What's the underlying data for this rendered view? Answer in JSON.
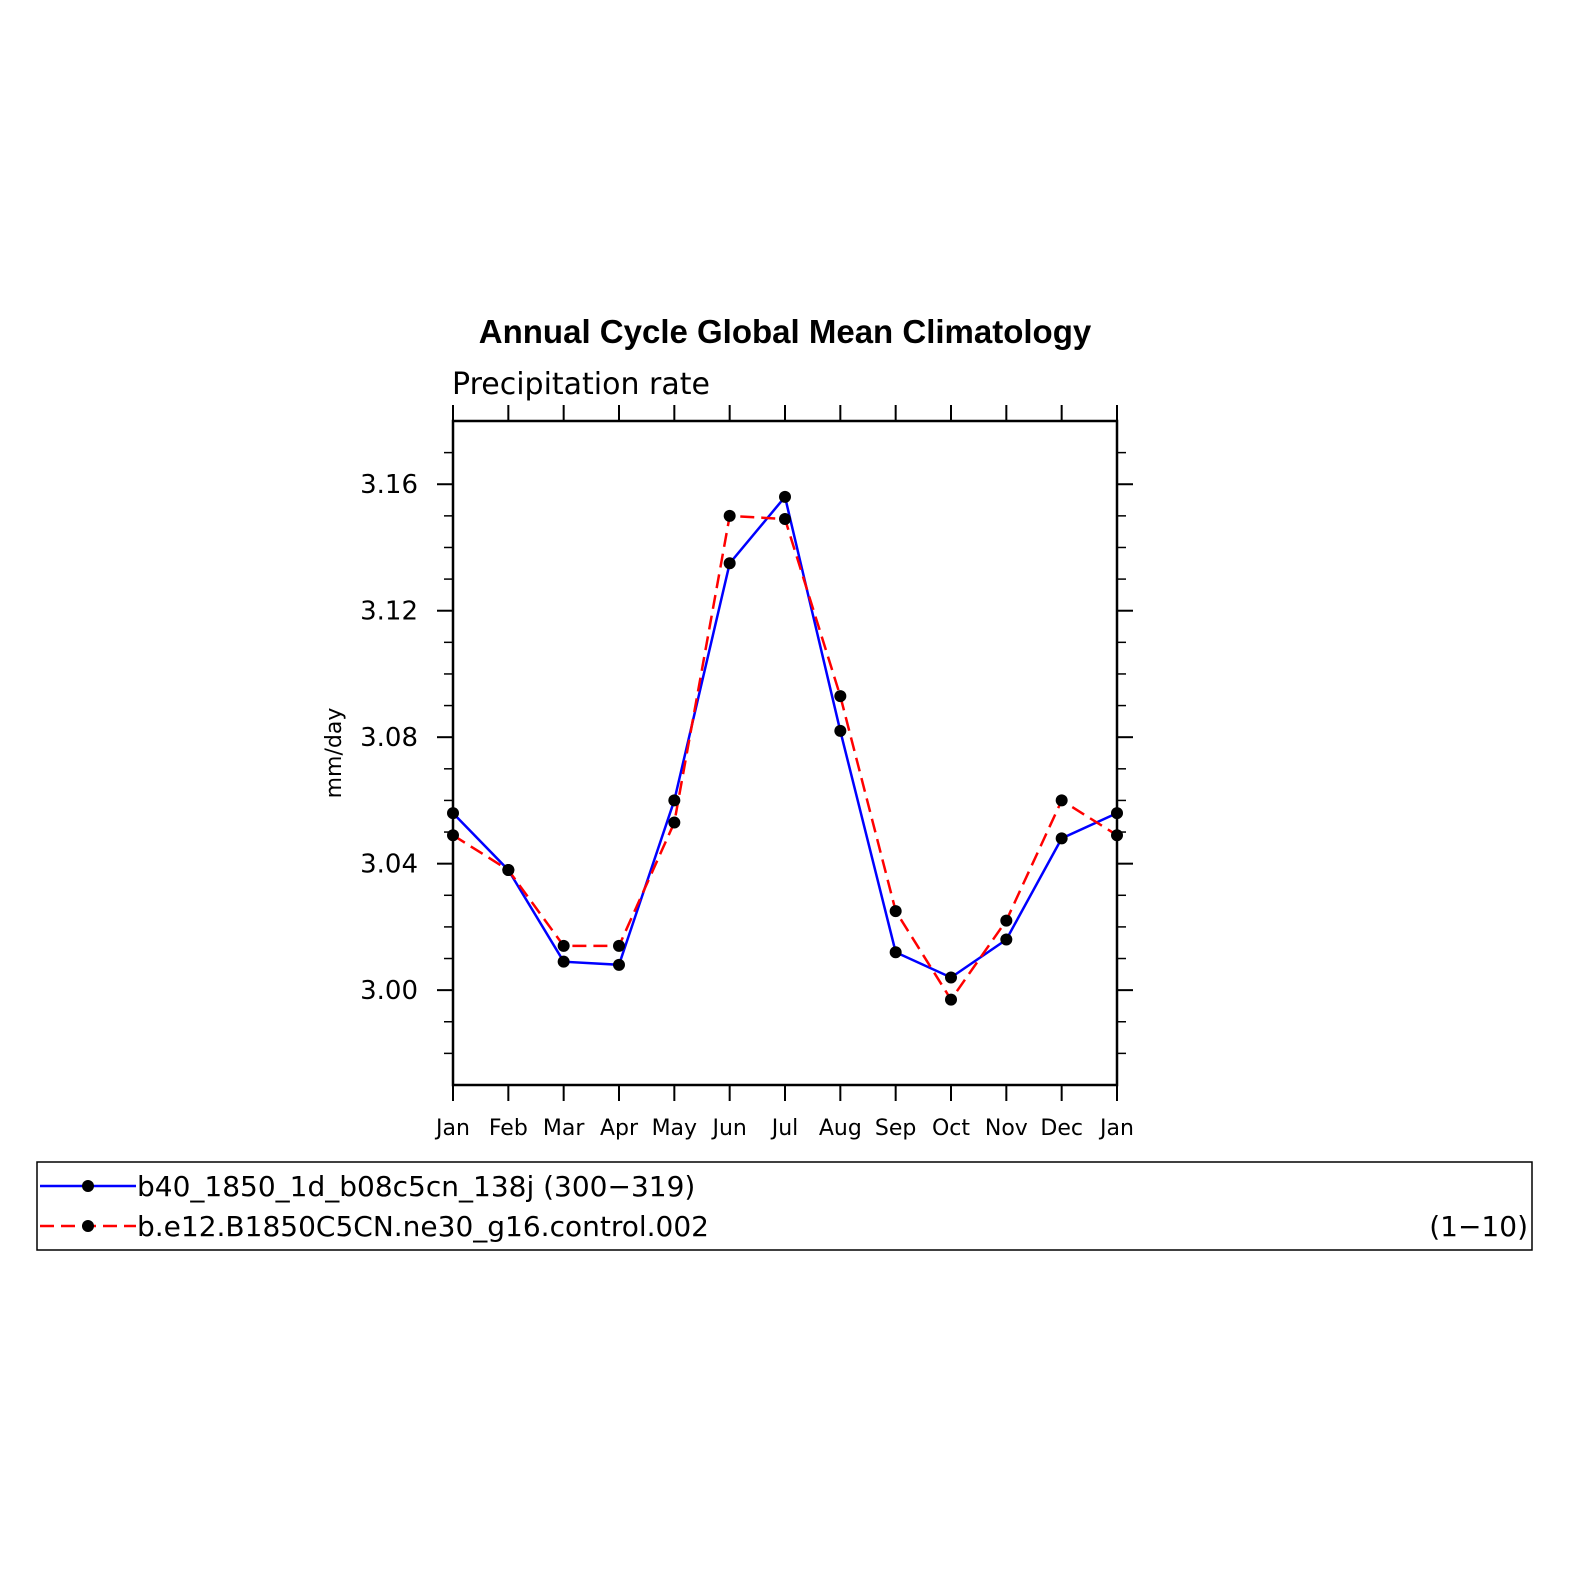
{
  "chart_data": {
    "type": "line",
    "title": "Annual Cycle Global Mean Climatology",
    "subtitle": "Precipitation rate",
    "ylabel": "mm/day",
    "xlabel": "",
    "categories": [
      "Jan",
      "Feb",
      "Mar",
      "Apr",
      "May",
      "Jun",
      "Jul",
      "Aug",
      "Sep",
      "Oct",
      "Nov",
      "Dec",
      "Jan"
    ],
    "ylim": [
      2.97,
      3.18
    ],
    "yticks": [
      "3.00",
      "3.04",
      "3.08",
      "3.12",
      "3.16"
    ],
    "series": [
      {
        "name": "b40_1850_1d_b08c5cn_138j (300−319)",
        "color": "#0000ff",
        "dash": "solid",
        "marker": "filled-circle",
        "values": [
          3.056,
          3.038,
          3.009,
          3.008,
          3.06,
          3.135,
          3.156,
          3.082,
          3.012,
          3.004,
          3.016,
          3.048,
          3.056
        ]
      },
      {
        "name": "b.e12.B1850C5CN.ne30_g16.control.002",
        "years": "(1−10)",
        "color": "#ff0000",
        "dash": "dashed",
        "marker": "filled-circle",
        "values": [
          3.049,
          3.038,
          3.014,
          3.014,
          3.053,
          3.15,
          3.149,
          3.093,
          3.025,
          2.997,
          3.022,
          3.06,
          3.049
        ]
      }
    ],
    "grid": false,
    "legend_position": "bottom"
  }
}
